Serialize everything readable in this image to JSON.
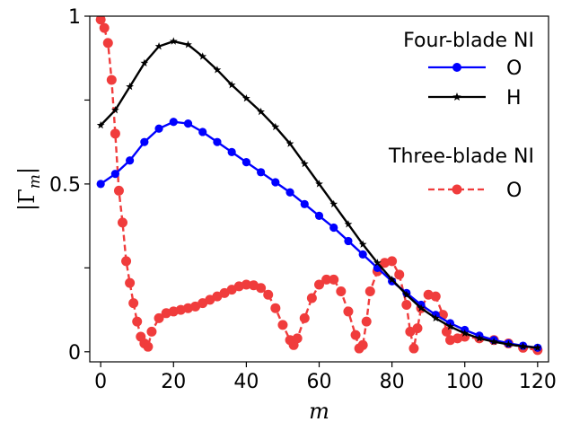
{
  "chart_data": {
    "type": "line",
    "xlabel": "m",
    "ylabel": "|Γ_m|",
    "ylabel_parts": {
      "open": "|Γ",
      "sub": "m",
      "close": "|"
    },
    "xlim": [
      -3,
      123
    ],
    "ylim": [
      -0.03,
      1.0
    ],
    "xticks": [
      0,
      20,
      40,
      60,
      80,
      100,
      120
    ],
    "xtick_labels": [
      "0",
      "20",
      "40",
      "60",
      "80",
      "100",
      "120"
    ],
    "yticks": [
      0,
      0.25,
      0.5,
      0.75,
      1.0
    ],
    "ytick_labels": [
      "0",
      "",
      "0.5",
      "",
      "1"
    ],
    "grid": false,
    "legend_placement": "top-right",
    "legend_groups": [
      {
        "title": "Four-blade NI",
        "entries": [
          "O",
          "H"
        ]
      },
      {
        "title": "Three-blade NI",
        "entries": [
          "O"
        ]
      }
    ],
    "series": [
      {
        "name": "O",
        "group": "Four-blade NI",
        "color": "#0000ff",
        "marker": "circle",
        "linestyle": "solid",
        "x": [
          0,
          4,
          8,
          12,
          16,
          20,
          24,
          28,
          32,
          36,
          40,
          44,
          48,
          52,
          56,
          60,
          64,
          68,
          72,
          76,
          80,
          84,
          88,
          92,
          96,
          100,
          104,
          108,
          112,
          116,
          120
        ],
        "y": [
          0.5,
          0.53,
          0.57,
          0.625,
          0.665,
          0.685,
          0.68,
          0.655,
          0.625,
          0.595,
          0.565,
          0.535,
          0.505,
          0.475,
          0.44,
          0.405,
          0.37,
          0.33,
          0.29,
          0.25,
          0.21,
          0.175,
          0.14,
          0.11,
          0.085,
          0.065,
          0.048,
          0.035,
          0.025,
          0.018,
          0.012
        ]
      },
      {
        "name": "H",
        "group": "Four-blade NI",
        "color": "#000000",
        "marker": "star",
        "linestyle": "solid",
        "x": [
          0,
          4,
          8,
          12,
          16,
          20,
          24,
          28,
          32,
          36,
          40,
          44,
          48,
          52,
          56,
          60,
          64,
          68,
          72,
          76,
          80,
          84,
          88,
          92,
          96,
          100,
          104,
          108,
          112,
          116,
          120
        ],
        "y": [
          0.675,
          0.72,
          0.79,
          0.86,
          0.91,
          0.925,
          0.915,
          0.88,
          0.84,
          0.795,
          0.755,
          0.715,
          0.67,
          0.62,
          0.56,
          0.5,
          0.44,
          0.38,
          0.32,
          0.265,
          0.215,
          0.17,
          0.13,
          0.1,
          0.075,
          0.055,
          0.04,
          0.03,
          0.022,
          0.016,
          0.012
        ]
      },
      {
        "name": "O",
        "group": "Three-blade NI",
        "color": "#f03c3c",
        "marker": "circle",
        "linestyle": "dashed",
        "x": [
          0,
          1,
          2,
          3,
          4,
          5,
          6,
          7,
          8,
          9,
          10,
          11,
          12,
          13,
          14,
          16,
          18,
          20,
          22,
          24,
          26,
          28,
          30,
          32,
          34,
          36,
          38,
          40,
          42,
          44,
          46,
          48,
          50,
          52,
          53,
          54,
          56,
          58,
          60,
          62,
          64,
          66,
          68,
          70,
          71,
          72,
          73,
          74,
          76,
          78,
          80,
          82,
          84,
          85,
          86,
          87,
          88,
          90,
          92,
          94,
          95,
          96,
          98,
          100,
          104,
          108,
          112,
          116,
          120
        ],
        "y": [
          0.99,
          0.965,
          0.92,
          0.81,
          0.65,
          0.48,
          0.385,
          0.27,
          0.205,
          0.145,
          0.09,
          0.045,
          0.025,
          0.015,
          0.06,
          0.1,
          0.115,
          0.12,
          0.125,
          0.13,
          0.135,
          0.145,
          0.155,
          0.165,
          0.175,
          0.185,
          0.195,
          0.2,
          0.198,
          0.19,
          0.17,
          0.13,
          0.08,
          0.035,
          0.02,
          0.04,
          0.1,
          0.16,
          0.2,
          0.215,
          0.215,
          0.18,
          0.12,
          0.05,
          0.01,
          0.02,
          0.09,
          0.18,
          0.24,
          0.265,
          0.27,
          0.23,
          0.14,
          0.06,
          0.01,
          0.07,
          0.13,
          0.17,
          0.165,
          0.11,
          0.06,
          0.035,
          0.04,
          0.045,
          0.04,
          0.035,
          0.025,
          0.012,
          0.005
        ]
      }
    ]
  }
}
